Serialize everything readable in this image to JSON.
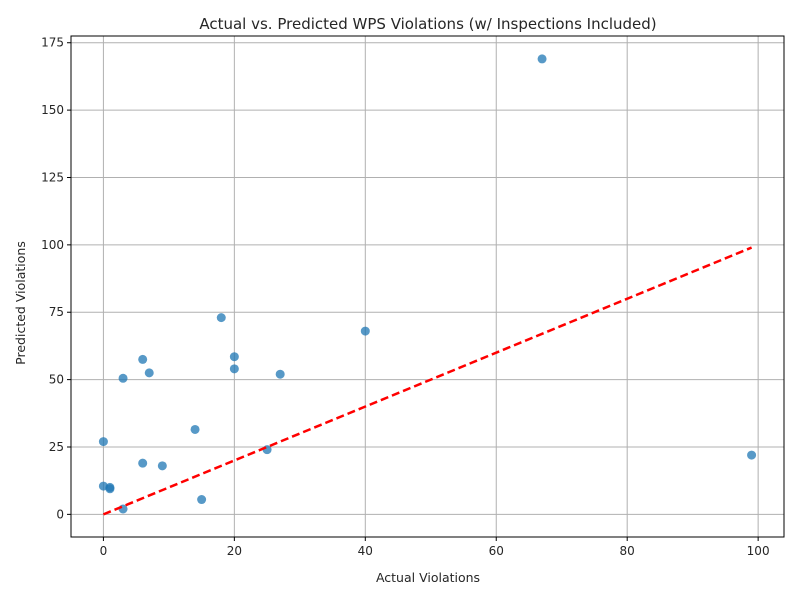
{
  "chart_data": {
    "type": "scatter",
    "title": "Actual vs. Predicted WPS Violations (w/ Inspections Included)",
    "xlabel": "Actual Violations",
    "ylabel": "Predicted Violations",
    "xlim": [
      -4.95,
      103.95
    ],
    "ylim": [
      -8.4,
      177.5
    ],
    "xticks": [
      0,
      20,
      40,
      60,
      80,
      100
    ],
    "yticks": [
      0,
      25,
      50,
      75,
      100,
      125,
      150,
      175
    ],
    "grid": true,
    "point_color": "#1f77b4",
    "reference_line": {
      "style": "dashed",
      "color": "#ff0000",
      "from": [
        0,
        0
      ],
      "to": [
        99,
        99
      ]
    },
    "points": [
      {
        "x": 67,
        "y": 169
      },
      {
        "x": 18,
        "y": 73
      },
      {
        "x": 40,
        "y": 68
      },
      {
        "x": 20,
        "y": 58.5
      },
      {
        "x": 6,
        "y": 57.5
      },
      {
        "x": 20,
        "y": 54
      },
      {
        "x": 7,
        "y": 52.5
      },
      {
        "x": 27,
        "y": 52
      },
      {
        "x": 3,
        "y": 50.5
      },
      {
        "x": 14,
        "y": 31.5
      },
      {
        "x": 0,
        "y": 27
      },
      {
        "x": 25,
        "y": 24
      },
      {
        "x": 99,
        "y": 22
      },
      {
        "x": 6,
        "y": 19
      },
      {
        "x": 9,
        "y": 18
      },
      {
        "x": 0,
        "y": 10.5
      },
      {
        "x": 1,
        "y": 10
      },
      {
        "x": 1,
        "y": 9.5
      },
      {
        "x": 15,
        "y": 5.5
      },
      {
        "x": 3,
        "y": 2
      }
    ]
  }
}
